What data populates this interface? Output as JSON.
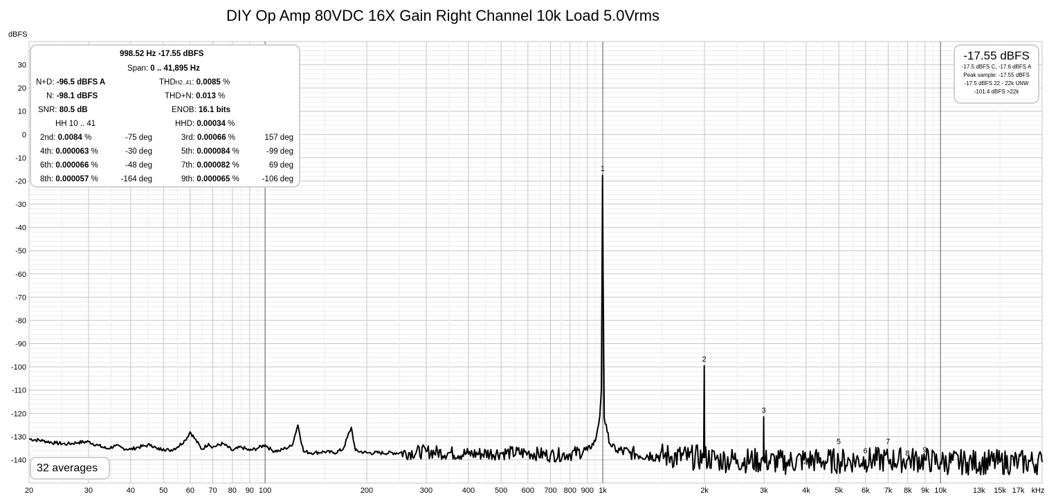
{
  "chart_data": {
    "type": "line",
    "title": "DIY Op Amp 80VDC 16X Gain Right Channel 10k Load 5.0Vrms",
    "ylabel": "dBFS",
    "x_unit_label": "kHz",
    "x_scale": "log",
    "xlim": [
      20,
      20000
    ],
    "ylim": [
      -150,
      40
    ],
    "grid": true,
    "x_tick_labels": [
      {
        "f": 20,
        "t": "20"
      },
      {
        "f": 30,
        "t": "30"
      },
      {
        "f": 40,
        "t": "40"
      },
      {
        "f": 50,
        "t": "50"
      },
      {
        "f": 60,
        "t": "60"
      },
      {
        "f": 70,
        "t": "70"
      },
      {
        "f": 80,
        "t": "80"
      },
      {
        "f": 90,
        "t": "90"
      },
      {
        "f": 100,
        "t": "100"
      },
      {
        "f": 200,
        "t": "200"
      },
      {
        "f": 300,
        "t": "300"
      },
      {
        "f": 400,
        "t": "400"
      },
      {
        "f": 500,
        "t": "500"
      },
      {
        "f": 600,
        "t": "600"
      },
      {
        "f": 700,
        "t": "700"
      },
      {
        "f": 800,
        "t": "800"
      },
      {
        "f": 900,
        "t": "900"
      },
      {
        "f": 1000,
        "t": "1k"
      },
      {
        "f": 2000,
        "t": "2k"
      },
      {
        "f": 3000,
        "t": "3k"
      },
      {
        "f": 4000,
        "t": "4k"
      },
      {
        "f": 5000,
        "t": "5k"
      },
      {
        "f": 6000,
        "t": "6k"
      },
      {
        "f": 7000,
        "t": "7k"
      },
      {
        "f": 8000,
        "t": "8k"
      },
      {
        "f": 9000,
        "t": "9k"
      },
      {
        "f": 10000,
        "t": "10k"
      },
      {
        "f": 13000,
        "t": "13k"
      },
      {
        "f": 15000,
        "t": "15k"
      },
      {
        "f": 17000,
        "t": "17k"
      }
    ],
    "y_ticks": [
      30,
      20,
      10,
      0,
      -10,
      -20,
      -30,
      -40,
      -50,
      -60,
      -70,
      -80,
      -90,
      -100,
      -110,
      -120,
      -130,
      -140
    ],
    "series": [
      {
        "points": [
          [
            20,
            -131
          ],
          [
            22,
            -131.8
          ],
          [
            24,
            -132.8
          ],
          [
            26,
            -133.2
          ],
          [
            28,
            -132.5
          ],
          [
            30,
            -132.2
          ],
          [
            32,
            -133.8
          ],
          [
            34,
            -135.2
          ],
          [
            36,
            -134
          ],
          [
            38,
            -135
          ],
          [
            40,
            -135.5
          ],
          [
            42,
            -134.6
          ],
          [
            44,
            -134
          ],
          [
            46,
            -133.5
          ],
          [
            48,
            -135.5
          ],
          [
            50,
            -135.2
          ],
          [
            52,
            -136
          ],
          [
            55,
            -134.5
          ],
          [
            58,
            -131.5
          ],
          [
            60,
            -128
          ],
          [
            62,
            -131
          ],
          [
            65,
            -135.5
          ],
          [
            68,
            -133
          ],
          [
            70,
            -134.5
          ],
          [
            75,
            -133
          ],
          [
            80,
            -136
          ],
          [
            85,
            -134.5
          ],
          [
            90,
            -136
          ],
          [
            95,
            -135
          ],
          [
            100,
            -133.5
          ],
          [
            105,
            -136
          ],
          [
            110,
            -136.2
          ],
          [
            115,
            -135
          ],
          [
            120,
            -134
          ],
          [
            125,
            -125
          ],
          [
            130,
            -136.5
          ],
          [
            140,
            -137
          ],
          [
            150,
            -136.5
          ],
          [
            160,
            -137
          ],
          [
            170,
            -135.5
          ],
          [
            180,
            -126
          ],
          [
            185,
            -136
          ],
          [
            200,
            -137
          ],
          [
            250,
            -137
          ],
          [
            300,
            -136.5
          ],
          [
            350,
            -137
          ],
          [
            400,
            -137.5
          ],
          [
            500,
            -137
          ],
          [
            600,
            -137
          ],
          [
            700,
            -138
          ],
          [
            800,
            -137.5
          ],
          [
            900,
            -136
          ],
          [
            950,
            -132
          ],
          [
            980,
            -121
          ],
          [
            990,
            -110
          ],
          [
            995,
            -60
          ],
          [
            998,
            -17.55
          ],
          [
            1002,
            -60
          ],
          [
            1010,
            -122
          ],
          [
            1030,
            -128
          ],
          [
            1050,
            -133
          ],
          [
            1100,
            -136
          ],
          [
            1200,
            -137
          ],
          [
            1400,
            -138
          ],
          [
            1600,
            -138.5
          ],
          [
            1800,
            -139
          ],
          [
            1990,
            -139
          ],
          [
            1997,
            -99.5
          ],
          [
            2003,
            -139
          ],
          [
            2200,
            -140
          ],
          [
            2500,
            -140
          ],
          [
            2990,
            -140.5
          ],
          [
            2996,
            -121.5
          ],
          [
            3003,
            -140.5
          ],
          [
            3500,
            -141
          ],
          [
            4000,
            -140
          ],
          [
            4500,
            -140.5
          ],
          [
            5000,
            -140.5
          ],
          [
            6000,
            -140
          ],
          [
            7000,
            -140
          ],
          [
            8000,
            -140
          ],
          [
            9000,
            -140
          ],
          [
            10000,
            -141
          ],
          [
            12000,
            -141
          ],
          [
            15000,
            -141
          ],
          [
            17000,
            -141
          ],
          [
            20000,
            -141
          ]
        ]
      }
    ],
    "harmonic_labels": [
      {
        "n": "1",
        "f": 998.52,
        "level": -17.55
      },
      {
        "n": "2",
        "f": 1997,
        "level": -99.5
      },
      {
        "n": "3",
        "f": 2996,
        "level": -121.5
      },
      {
        "n": "4",
        "f": 3994,
        "level": -144
      },
      {
        "n": "5",
        "f": 4993,
        "level": -135
      },
      {
        "n": "6",
        "f": 5991,
        "level": -139
      },
      {
        "n": "7",
        "f": 6990,
        "level": -135
      },
      {
        "n": "8",
        "f": 7988,
        "level": -140
      },
      {
        "n": "9",
        "f": 8987,
        "level": -138.5
      }
    ]
  },
  "stats": {
    "fundamental": "998.52 Hz  -17.55 dBFS",
    "span_label": "Span:",
    "span_value": "0 .. 41,895 Hz",
    "nd_label": "N+D:",
    "nd_value": "-96.5 dBFS A",
    "thd_label": "THD",
    "thd_sub": "H2..41",
    "thd_colon": ":",
    "thd_value": "0.0085",
    "thd_unit": "%",
    "n_label": "N:",
    "n_value": "-98.1 dBFS",
    "thdn_label": "THD+N:",
    "thdn_value": "0.013",
    "thdn_unit": "%",
    "snr_label": "SNR:",
    "snr_value": "80.5 dB",
    "enob_label": "ENOB:",
    "enob_value": "16.1 bits",
    "hh_label": "HH 10 .. 41",
    "hhd_label": "HHD:",
    "hhd_value": "0.00034",
    "hhd_unit": "%",
    "harmonics": [
      {
        "label": "2nd:",
        "value": "0.0084",
        "unit": "%",
        "phase": "-75 deg"
      },
      {
        "label": "3rd:",
        "value": "0.00066",
        "unit": "%",
        "phase": "157 deg"
      },
      {
        "label": "4th:",
        "value": "0.000063",
        "unit": "%",
        "phase": "-30 deg"
      },
      {
        "label": "5th:",
        "value": "0.000084",
        "unit": "%",
        "phase": "-99 deg"
      },
      {
        "label": "6th:",
        "value": "0.000066",
        "unit": "%",
        "phase": "-48 deg"
      },
      {
        "label": "7th:",
        "value": "0.000082",
        "unit": "%",
        "phase": "69 deg"
      },
      {
        "label": "8th:",
        "value": "0.000057",
        "unit": "%",
        "phase": "-164 deg"
      },
      {
        "label": "9th:",
        "value": "0.000065",
        "unit": "%",
        "phase": "-106 deg"
      }
    ]
  },
  "level": {
    "main": "-17.55 dBFS",
    "line1": "-17.5 dBFS C, -17.6 dBFS A",
    "line2": "Peak sample: -17.55 dBFS",
    "line3": "-17.5 dBFS 22 - 22k UNW",
    "line4": "-101.4 dBFS >22k"
  },
  "averages": "32 averages"
}
